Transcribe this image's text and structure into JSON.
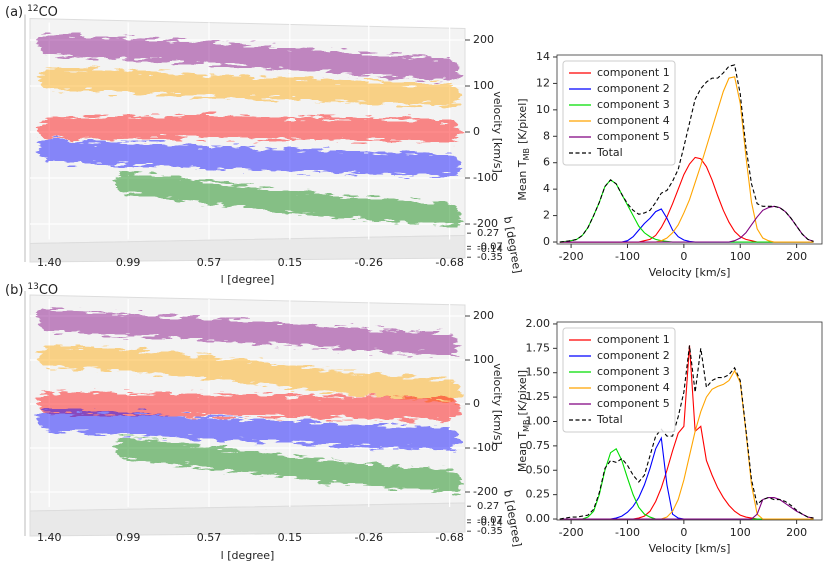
{
  "chart_data": [
    {
      "type": "scatter3d",
      "title": {
        "panel": "(a)",
        "mass_number": "12",
        "molecule": "CO"
      },
      "xlabel": "l [degree]",
      "ylabel": "velocity [km/s]",
      "zlabel": "b [degree]",
      "xlim": [
        1.5,
        -0.76
      ],
      "xticks": [
        {
          "value": 1.4,
          "label": "1.40"
        },
        0.99,
        0.57,
        0.15,
        -0.26,
        -0.68
      ],
      "ylim": [
        -225,
        225
      ],
      "yticks": [
        -200,
        -100,
        0,
        100,
        200
      ],
      "zlim": [
        0.3,
        -0.37
      ],
      "zticks": [
        0.27,
        -0.07,
        -0.14,
        -0.35
      ],
      "x": [
        1.4,
        1.0,
        0.6,
        0.2,
        -0.2,
        -0.68
      ],
      "series": [
        {
          "color": "#800080",
          "values": [
            190,
            180,
            172,
            160,
            148,
            135
          ]
        },
        {
          "color": "#ffa500",
          "values": [
            117,
            110,
            100,
            95,
            88,
            80
          ]
        },
        {
          "color": "#ff0000",
          "values": [
            8,
            10,
            12,
            8,
            5,
            3
          ]
        },
        {
          "color": "#0000ff",
          "values": [
            -40,
            -48,
            -55,
            -60,
            -66,
            -72
          ]
        },
        {
          "color": "#008000",
          "values": [
            null,
            -110,
            -130,
            -150,
            -165,
            -180
          ]
        }
      ]
    },
    {
      "type": "line",
      "xlabel": "Velocity [km/s]",
      "ylabel": {
        "text": "Mean T",
        "subscript": "MB",
        "unit": "[K/pixel]"
      },
      "xlim": [
        -225,
        245
      ],
      "xticks": [
        -200,
        -100,
        0,
        100,
        200
      ],
      "ylim": [
        -0.15,
        14.15
      ],
      "yticks": [
        0,
        2,
        4,
        6,
        8,
        10,
        12,
        14
      ],
      "legend": "upper left",
      "x": [
        -220,
        -210,
        -200,
        -190,
        -180,
        -170,
        -160,
        -150,
        -140,
        -130,
        -120,
        -110,
        -100,
        -90,
        -80,
        -70,
        -60,
        -50,
        -40,
        -30,
        -20,
        -10,
        0,
        10,
        20,
        30,
        40,
        50,
        60,
        70,
        80,
        90,
        100,
        110,
        120,
        130,
        140,
        150,
        160,
        170,
        180,
        190,
        200,
        210,
        220,
        230
      ],
      "series": [
        {
          "name": "component 1",
          "color": "#ff0000",
          "linestyle": "solid",
          "values": [
            0,
            0,
            0,
            0,
            0,
            0,
            0,
            0,
            0,
            0,
            0,
            0,
            0,
            0,
            0,
            0.1,
            0.2,
            0.5,
            1.1,
            1.9,
            2.9,
            4.0,
            5.1,
            5.9,
            6.4,
            6.3,
            5.7,
            4.7,
            3.5,
            2.4,
            1.5,
            0.8,
            0.4,
            0.2,
            0.1,
            0,
            0,
            0,
            0,
            0,
            0,
            0,
            0,
            0,
            0,
            0
          ]
        },
        {
          "name": "component 2",
          "color": "#0000ff",
          "linestyle": "solid",
          "values": [
            0,
            0,
            0,
            0,
            0,
            0,
            0,
            0,
            0,
            0,
            0,
            0,
            0.1,
            0.4,
            0.9,
            1.4,
            1.8,
            2.3,
            2.5,
            1.8,
            0.9,
            0.4,
            0.15,
            0.05,
            0,
            0,
            0,
            0,
            0,
            0,
            0,
            0,
            0,
            0,
            0,
            0,
            0,
            0,
            0,
            0,
            0,
            0,
            0,
            0,
            0,
            0
          ]
        },
        {
          "name": "component 3",
          "color": "#00dd00",
          "linestyle": "solid",
          "values": [
            0,
            0.05,
            0.1,
            0.2,
            0.5,
            1.1,
            2.0,
            3.0,
            4.2,
            4.7,
            4.4,
            3.6,
            2.8,
            2.0,
            1.2,
            0.7,
            0.4,
            0.2,
            0.1,
            0.05,
            0,
            0,
            0,
            0,
            0,
            0,
            0,
            0,
            0,
            0,
            0,
            0,
            0,
            0,
            0,
            0,
            0,
            0,
            0,
            0,
            0,
            0,
            0,
            0,
            0,
            0
          ]
        },
        {
          "name": "component 4",
          "color": "#ffa500",
          "linestyle": "solid",
          "values": [
            0,
            0,
            0,
            0,
            0,
            0,
            0,
            0,
            0,
            0,
            0,
            0,
            0,
            0,
            0,
            0,
            0,
            0,
            0.1,
            0.3,
            0.7,
            1.3,
            2.2,
            3.2,
            4.5,
            5.8,
            7.2,
            8.6,
            10.0,
            11.4,
            12.4,
            12.5,
            10.5,
            6.5,
            3.0,
            1.0,
            0.3,
            0.1,
            0,
            0,
            0,
            0,
            0,
            0,
            0,
            0
          ]
        },
        {
          "name": "component 5",
          "color": "#800080",
          "linestyle": "solid",
          "values": [
            0,
            0,
            0,
            0,
            0,
            0,
            0,
            0,
            0,
            0,
            0,
            0,
            0,
            0,
            0,
            0,
            0,
            0,
            0,
            0,
            0,
            0,
            0,
            0,
            0,
            0,
            0,
            0,
            0,
            0,
            0,
            0.1,
            0.3,
            0.7,
            1.3,
            1.9,
            2.4,
            2.6,
            2.7,
            2.6,
            2.3,
            1.8,
            1.2,
            0.6,
            0.2,
            0.05
          ]
        },
        {
          "name": "Total",
          "color": "#000000",
          "linestyle": "dashed",
          "values": [
            0,
            0.05,
            0.1,
            0.2,
            0.5,
            1.1,
            2.0,
            3.0,
            4.2,
            4.7,
            4.4,
            3.6,
            2.9,
            2.4,
            2.1,
            2.2,
            2.4,
            3.0,
            3.7,
            3.9,
            4.6,
            5.5,
            7.2,
            9.0,
            10.8,
            11.6,
            12.1,
            12.4,
            12.4,
            12.8,
            13.3,
            13.4,
            11.2,
            7.2,
            4.4,
            2.9,
            2.7,
            2.7,
            2.7,
            2.6,
            2.3,
            1.8,
            1.2,
            0.6,
            0.2,
            0.05
          ]
        }
      ]
    },
    {
      "type": "scatter3d",
      "title": {
        "panel": "(b)",
        "mass_number": "13",
        "molecule": "CO"
      },
      "xlabel": "l [degree]",
      "ylabel": "velocity [km/s]",
      "zlabel": "b [degree]",
      "xlim": [
        1.5,
        -0.76
      ],
      "xticks": [
        {
          "value": 1.4,
          "label": "1.40"
        },
        0.99,
        0.57,
        0.15,
        -0.26,
        -0.68
      ],
      "ylim": [
        -225,
        225
      ],
      "yticks": [
        -200,
        -100,
        0,
        100,
        200
      ],
      "zlim": [
        0.3,
        -0.37
      ],
      "zticks": [
        0.27,
        -0.07,
        -0.14,
        -0.35
      ],
      "x": [
        1.4,
        1.0,
        0.6,
        0.2,
        -0.2,
        -0.68
      ],
      "series": [
        {
          "color": "#800080",
          "values": [
            190,
            180,
            170,
            160,
            148,
            134
          ]
        },
        {
          "color": "#ffa500",
          "values": [
            108,
            100,
            85,
            65,
            45,
            30
          ]
        },
        {
          "color": "#ff0000",
          "values": [
            2,
            0,
            -2,
            -5,
            -8,
            -12
          ]
        },
        {
          "color": "#0000ff",
          "values": [
            -36,
            -45,
            -55,
            -62,
            -72,
            -80
          ]
        },
        {
          "color": "#008000",
          "values": [
            null,
            -100,
            -120,
            -140,
            -160,
            -175
          ]
        }
      ]
    },
    {
      "type": "line",
      "xlabel": "Velocity [km/s]",
      "ylabel": {
        "text": "Mean T",
        "subscript": "MB",
        "unit": "[K/pixel]"
      },
      "xlim": [
        -225,
        245
      ],
      "xticks": [
        -200,
        -100,
        0,
        100,
        200
      ],
      "ylim": [
        -0.01,
        2.02
      ],
      "yticks": [
        {
          "value": 0,
          "label": "0.00"
        },
        {
          "value": 0.25,
          "label": "0.25"
        },
        {
          "value": 0.5,
          "label": "0.50"
        },
        {
          "value": 0.75,
          "label": "0.75"
        },
        {
          "value": 1,
          "label": "1.00"
        },
        {
          "value": 1.25,
          "label": "1.25"
        },
        {
          "value": 1.5,
          "label": "1.50"
        },
        {
          "value": 1.75,
          "label": "1.75"
        },
        {
          "value": 2,
          "label": "2.00"
        }
      ],
      "legend": "upper left",
      "x": [
        -220,
        -210,
        -200,
        -190,
        -180,
        -170,
        -160,
        -150,
        -140,
        -130,
        -120,
        -110,
        -100,
        -90,
        -80,
        -70,
        -60,
        -50,
        -40,
        -30,
        -20,
        -10,
        0,
        10,
        20,
        30,
        40,
        50,
        60,
        70,
        80,
        90,
        100,
        110,
        120,
        130,
        140,
        150,
        160,
        170,
        180,
        190,
        200,
        210,
        220,
        230
      ],
      "series": [
        {
          "name": "component 1",
          "color": "#ff0000",
          "linestyle": "solid",
          "values": [
            0,
            0,
            0,
            0,
            0,
            0,
            0,
            0,
            0,
            0,
            0,
            0,
            0,
            0,
            0.01,
            0.03,
            0.08,
            0.18,
            0.32,
            0.5,
            0.7,
            0.88,
            0.95,
            1.78,
            0.9,
            0.95,
            0.6,
            0.45,
            0.32,
            0.22,
            0.14,
            0.08,
            0.04,
            0.02,
            0.01,
            0,
            0,
            0,
            0,
            0,
            0,
            0,
            0,
            0,
            0,
            0
          ]
        },
        {
          "name": "component 2",
          "color": "#0000ff",
          "linestyle": "solid",
          "values": [
            0,
            0,
            0,
            0,
            0,
            0,
            0,
            0,
            0,
            0,
            0.01,
            0.03,
            0.07,
            0.13,
            0.22,
            0.35,
            0.52,
            0.72,
            0.83,
            0.35,
            0.05,
            0.01,
            0,
            0,
            0,
            0,
            0,
            0,
            0,
            0,
            0,
            0,
            0,
            0,
            0,
            0,
            0,
            0,
            0,
            0,
            0,
            0,
            0,
            0,
            0,
            0
          ]
        },
        {
          "name": "component 3",
          "color": "#00dd00",
          "linestyle": "solid",
          "values": [
            0,
            0,
            0,
            0,
            0,
            0.02,
            0.08,
            0.25,
            0.5,
            0.68,
            0.72,
            0.6,
            0.42,
            0.25,
            0.12,
            0.05,
            0.02,
            0,
            0,
            0,
            0,
            0,
            0,
            0,
            0,
            0,
            0,
            0,
            0,
            0,
            0,
            0,
            0,
            0,
            0,
            0,
            0,
            0,
            0,
            0,
            0,
            0,
            0,
            0,
            0,
            0
          ]
        },
        {
          "name": "component 4",
          "color": "#ffa500",
          "linestyle": "solid",
          "values": [
            0,
            0,
            0,
            0,
            0,
            0,
            0,
            0,
            0,
            0,
            0,
            0,
            0,
            0,
            0,
            0,
            0,
            0,
            0,
            0.02,
            0.08,
            0.2,
            0.4,
            0.65,
            0.9,
            1.1,
            1.25,
            1.33,
            1.36,
            1.38,
            1.42,
            1.52,
            1.4,
            0.9,
            0.35,
            0.05,
            0,
            0,
            0,
            0,
            0,
            0,
            0,
            0,
            0,
            0
          ]
        },
        {
          "name": "component 5",
          "color": "#800080",
          "linestyle": "solid",
          "values": [
            0,
            0,
            0,
            0,
            0,
            0,
            0,
            0,
            0,
            0,
            0,
            0,
            0,
            0,
            0,
            0,
            0,
            0,
            0,
            0,
            0,
            0,
            0,
            0,
            0,
            0,
            0,
            0,
            0,
            0,
            0,
            0,
            0,
            0,
            0,
            0.05,
            0.2,
            0.22,
            0.22,
            0.2,
            0.16,
            0.12,
            0.08,
            0.05,
            0.02,
            0.01
          ]
        },
        {
          "name": "Total",
          "color": "#000000",
          "linestyle": "dashed",
          "values": [
            0,
            0.01,
            0.02,
            0.02,
            0.03,
            0.04,
            0.1,
            0.27,
            0.52,
            0.6,
            0.58,
            0.62,
            0.55,
            0.45,
            0.38,
            0.45,
            0.65,
            0.85,
            0.92,
            0.85,
            0.85,
            1.05,
            1.3,
            1.78,
            1.3,
            1.75,
            1.35,
            1.42,
            1.45,
            1.45,
            1.48,
            1.55,
            1.42,
            0.92,
            0.4,
            0.15,
            0.2,
            0.22,
            0.2,
            0.2,
            0.18,
            0.14,
            0.09,
            0.05,
            0.02,
            0.01
          ]
        }
      ]
    }
  ]
}
